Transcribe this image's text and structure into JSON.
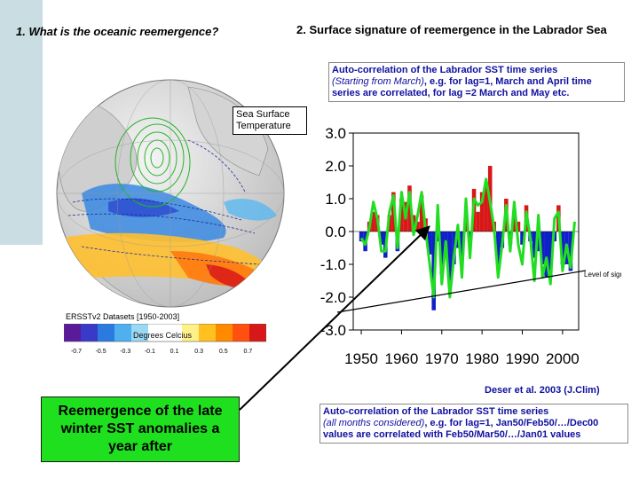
{
  "left_title": "1. What is the oceanic reemergence?",
  "right_title": "2. Surface signature of reemergence in the Labrador Sea",
  "top_box": {
    "line1": "Auto-correlation of the Labrador SST time series",
    "line2_italic": "(Starting from March)",
    "line2_rest": ", e.g. for lag=1, March and April time series are correlated, for lag =2 March and May etc."
  },
  "sst_label": "Sea Surface Temperature",
  "dataset_label": "ERSSTv2 Datasets [1950-2003]",
  "colorbar": {
    "label": "Degrees Celcius",
    "ticks": [
      "-0.7",
      "-0.5",
      "-0.3",
      "-0.1",
      "0.1",
      "0.3",
      "0.5",
      "0.7"
    ],
    "colors": [
      "#5a1a9a",
      "#3a3ac8",
      "#2a7ae0",
      "#4fb0f0",
      "#9ad8f4",
      "#ffffff",
      "#ffffff",
      "#fff08a",
      "#ffc020",
      "#ff8a00",
      "#ff5010",
      "#d81818"
    ]
  },
  "significance_label": "Level of significance",
  "citation": "Deser et al. 2003 (J.Clim)",
  "green_box_text": "Reemergence of the late winter SST anomalies a year after",
  "bottom_box": {
    "line1": "Auto-correlation of the Labrador SST time series",
    "line2_italic": "(all months considered)",
    "line2_rest": ", e.g. for lag=1, Jan50/Feb50/…/Dec00 values are correlated with Feb50/Mar50/…/Jan01 values"
  },
  "chart_data": {
    "type": "bar",
    "xlim": [
      1948,
      2004
    ],
    "ylim": [
      -3.0,
      3.0
    ],
    "xticks": [
      "1950",
      "1960",
      "1970",
      "1980",
      "1990",
      "2000"
    ],
    "yticks": [
      "3.0",
      "2.0",
      "1.0",
      "0.0",
      "-1.0",
      "-2.0",
      "-3.0"
    ],
    "years": [
      1950,
      1951,
      1952,
      1953,
      1954,
      1955,
      1956,
      1957,
      1958,
      1959,
      1960,
      1961,
      1962,
      1963,
      1964,
      1965,
      1966,
      1967,
      1968,
      1969,
      1970,
      1971,
      1972,
      1973,
      1974,
      1975,
      1976,
      1977,
      1978,
      1979,
      1980,
      1981,
      1982,
      1983,
      1984,
      1985,
      1986,
      1987,
      1988,
      1989,
      1990,
      1991,
      1992,
      1993,
      1994,
      1995,
      1996,
      1997,
      1998,
      1999,
      2000,
      2001,
      2002,
      2003
    ],
    "values": [
      -0.3,
      -0.6,
      0.3,
      0.6,
      0.5,
      -0.4,
      -0.8,
      0.5,
      1.2,
      -0.6,
      1.0,
      0.9,
      1.4,
      0.5,
      0.3,
      1.1,
      0.4,
      -0.7,
      -2.4,
      -0.3,
      -1.3,
      -0.6,
      -1.5,
      -1.0,
      -0.5,
      -0.8,
      0.5,
      -0.4,
      1.3,
      0.6,
      1.2,
      1.5,
      2.0,
      0.3,
      -1.1,
      -0.5,
      1.0,
      -0.4,
      0.5,
      0.3,
      -0.4,
      0.8,
      -0.3,
      -0.8,
      -0.6,
      -1.0,
      -1.4,
      -1.4,
      -0.3,
      0.8,
      -1.0,
      -1.0,
      -1.2,
      0.0
    ],
    "line_values": [
      -0.2,
      -0.4,
      0.1,
      0.9,
      0.4,
      -0.6,
      -0.6,
      0.6,
      1.1,
      -0.5,
      1.2,
      0.4,
      1.2,
      -0.1,
      0.5,
      1.2,
      0.0,
      -1.0,
      -2.0,
      0.8,
      -1.6,
      -0.3,
      -2.0,
      -0.8,
      0.2,
      -1.4,
      1.0,
      -0.8,
      1.0,
      0.8,
      0.9,
      1.6,
      0.9,
      0.1,
      -1.4,
      -0.4,
      0.8,
      -0.6,
      0.9,
      -0.4,
      -1.0,
      0.6,
      -0.2,
      -1.5,
      0.5,
      -1.4,
      -0.8,
      -1.6,
      0.4,
      0.6,
      -1.2,
      -0.4,
      -1.1,
      0.3
    ],
    "colors": {
      "positive": "#d81818",
      "negative": "#1020c8",
      "line": "#22dd22"
    }
  }
}
